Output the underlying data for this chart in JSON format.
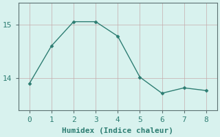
{
  "x": [
    0,
    1,
    2,
    3,
    4,
    5,
    6,
    7,
    8
  ],
  "y": [
    13.9,
    14.6,
    15.05,
    15.05,
    14.78,
    14.02,
    13.72,
    13.82,
    13.77
  ],
  "line_color": "#2d7d72",
  "marker_color": "#2d7d72",
  "bg_color": "#d8f2ee",
  "grid_color": "#c4a8a8",
  "spine_color": "#5a7070",
  "xlabel": "Humidex (Indice chaleur)",
  "yticks": [
    14,
    15
  ],
  "xticks": [
    0,
    1,
    2,
    3,
    4,
    5,
    6,
    7,
    8
  ],
  "xlim": [
    -0.5,
    8.5
  ],
  "ylim": [
    13.4,
    15.4
  ],
  "xlabel_fontsize": 8,
  "tick_fontsize": 8
}
